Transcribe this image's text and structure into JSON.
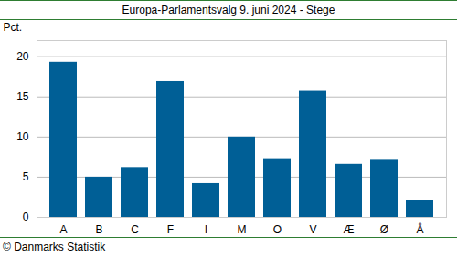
{
  "chart_data": {
    "type": "bar",
    "title": "Europa-Parlamentsvalg 9. juni 2024 - Stege",
    "y_label": "Pct.",
    "caption": "© Danmarks Statistik",
    "categories": [
      "A",
      "B",
      "C",
      "F",
      "I",
      "M",
      "O",
      "V",
      "Æ",
      "Ø",
      "Å"
    ],
    "values": [
      19.3,
      5.0,
      6.2,
      16.9,
      4.2,
      10.0,
      7.3,
      15.7,
      6.6,
      7.1,
      2.1
    ],
    "color": "#005f96",
    "ylim": [
      0,
      22
    ],
    "yticks": [
      0,
      5,
      10,
      15,
      20
    ],
    "grid": true
  }
}
